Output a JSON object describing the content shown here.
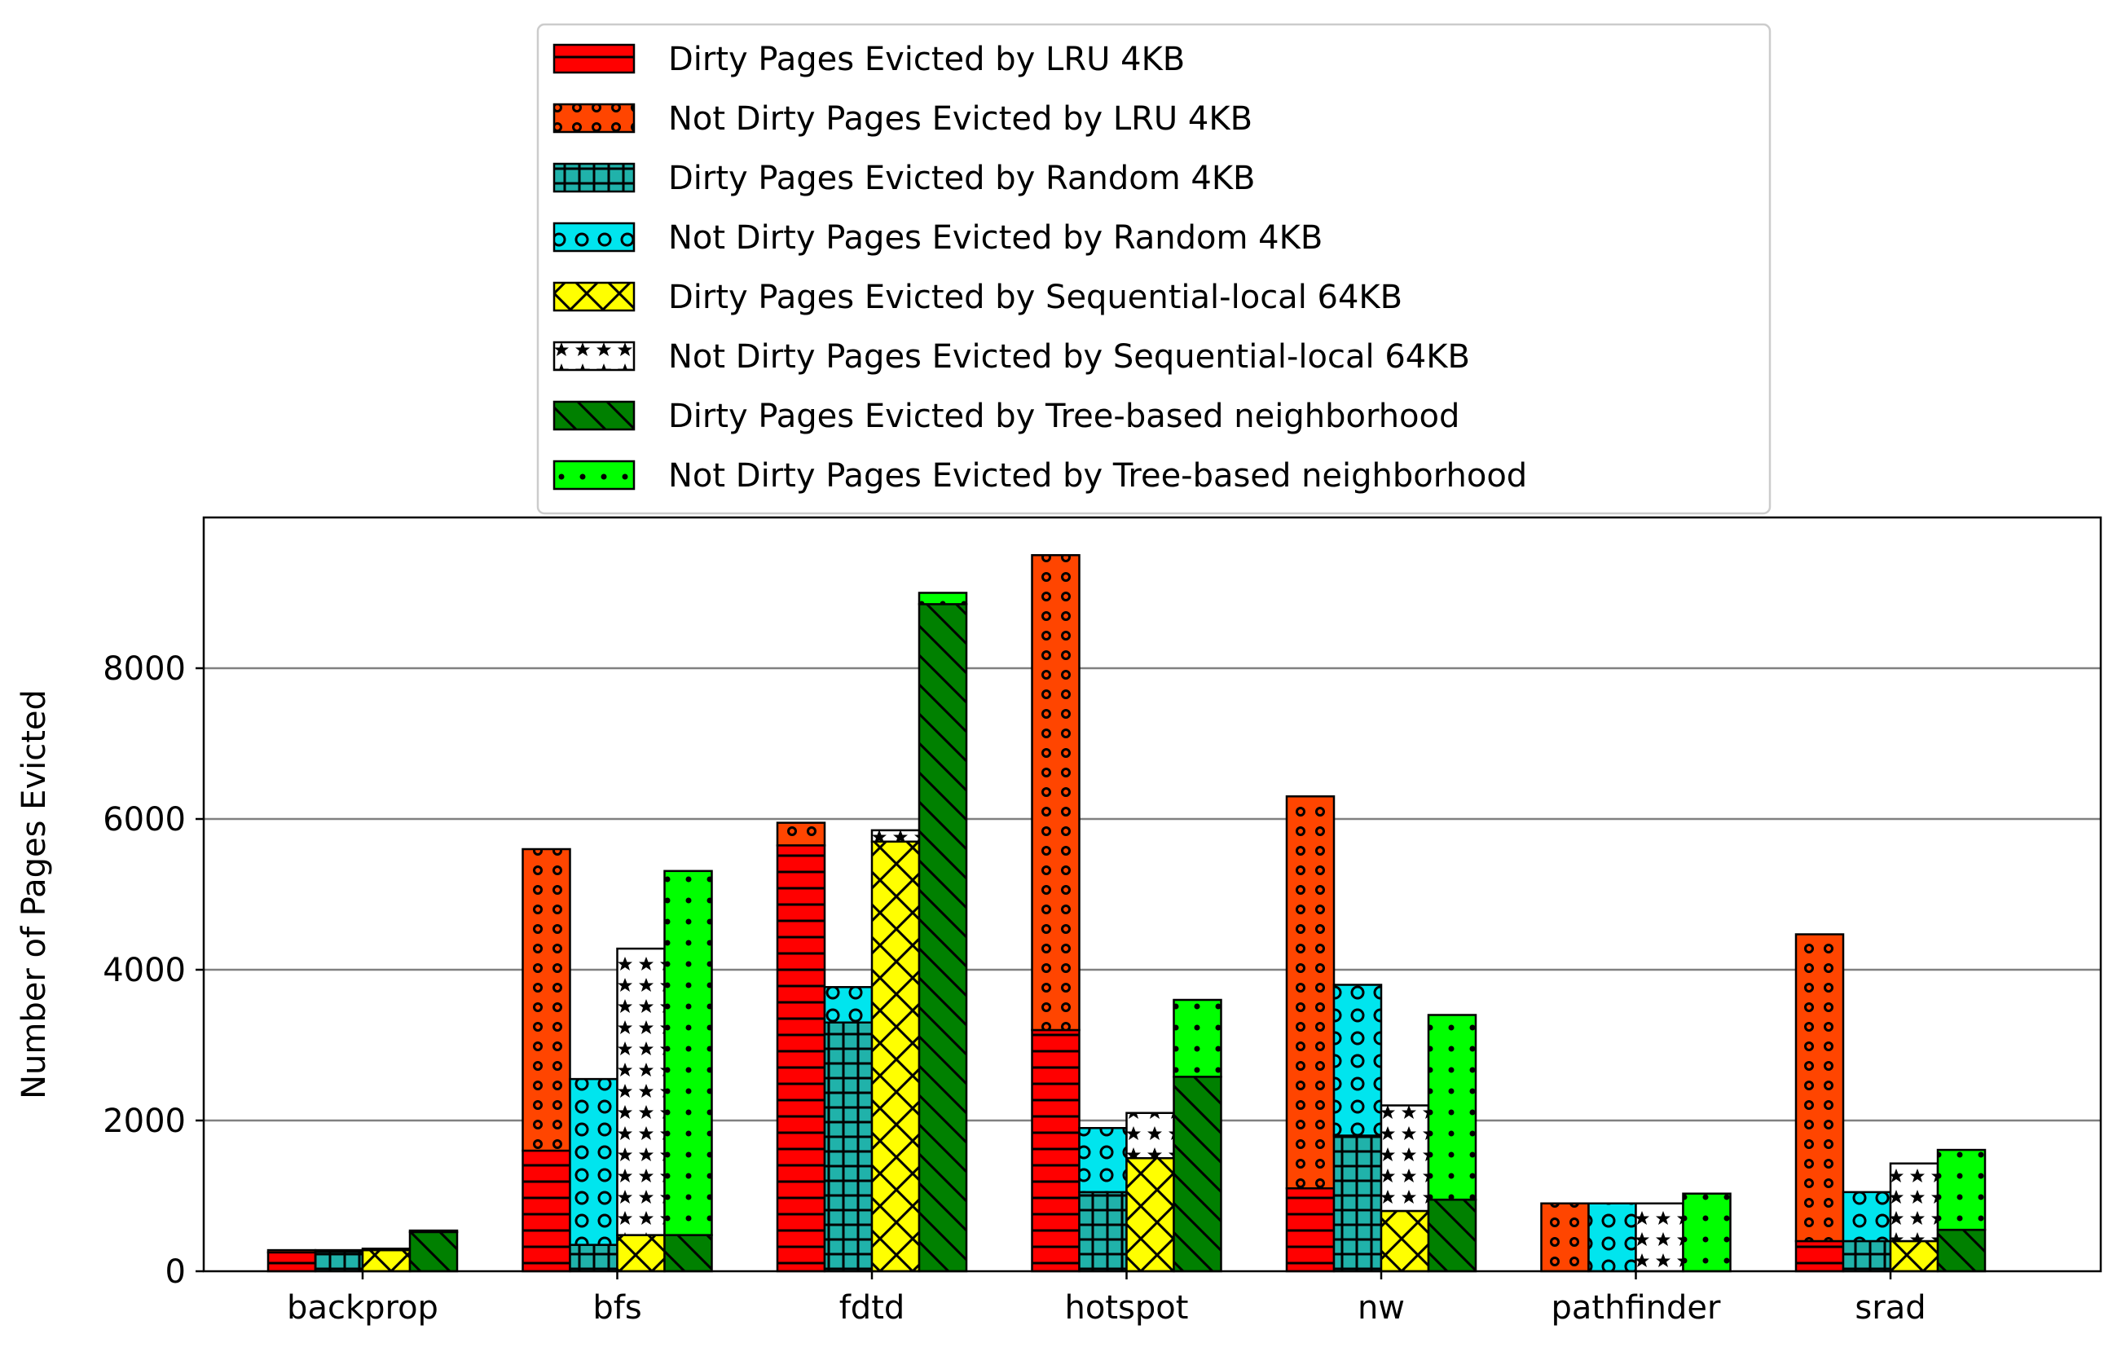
{
  "chart_data": {
    "type": "bar",
    "stacked": true,
    "grouped": true,
    "title": "",
    "xlabel": "",
    "ylabel": "Number of Pages Evicted",
    "ylim": [
      0,
      10000
    ],
    "yticks": [
      0,
      2000,
      4000,
      6000,
      8000
    ],
    "grid": "horizontal",
    "legend_placement": "top-center, above plot",
    "categories": [
      "backprop",
      "bfs",
      "fdtd",
      "hotspot",
      "nw",
      "pathfinder",
      "srad"
    ],
    "policies": [
      {
        "key": "lru",
        "dirty_label": "Dirty Pages Evicted by LRU 4KB",
        "clean_label": "Not Dirty Pages Evicted by LRU 4KB",
        "dirty_color": "#ff0000",
        "clean_color": "#ff4500",
        "dirty_pattern": "hlines",
        "clean_pattern": "circles-small",
        "dirty": [
          250,
          1600,
          5650,
          3200,
          1100,
          0,
          400
        ],
        "clean": [
          30,
          4000,
          300,
          6300,
          5200,
          900,
          4070
        ]
      },
      {
        "key": "random",
        "dirty_label": "Dirty Pages Evicted by Random 4KB",
        "clean_label": "Not Dirty Pages Evicted by Random 4KB",
        "dirty_color": "#20b2aa",
        "clean_color": "#00e5ee",
        "dirty_pattern": "grid",
        "clean_pattern": "rings",
        "dirty": [
          260,
          350,
          3300,
          1050,
          1800,
          0,
          400
        ],
        "clean": [
          20,
          2200,
          470,
          850,
          2000,
          900,
          650
        ]
      },
      {
        "key": "seq",
        "dirty_label": "Dirty Pages Evicted by Sequential-local 64KB",
        "clean_label": "Not Dirty Pages Evicted by Sequential-local 64KB",
        "dirty_color": "#ffff00",
        "clean_color": "#ffffff",
        "dirty_pattern": "crosshatch",
        "clean_pattern": "stars",
        "dirty": [
          280,
          480,
          5700,
          1500,
          800,
          0,
          400
        ],
        "clean": [
          20,
          3800,
          150,
          600,
          1400,
          900,
          1030
        ]
      },
      {
        "key": "tree",
        "dirty_label": "Dirty Pages Evicted by Tree-based neighborhood",
        "clean_label": "Not Dirty Pages Evicted by Tree-based neighborhood",
        "dirty_color": "#008000",
        "clean_color": "#00ff00",
        "dirty_pattern": "diag",
        "clean_pattern": "dots",
        "dirty": [
          520,
          480,
          8850,
          2580,
          950,
          0,
          550
        ],
        "clean": [
          20,
          4830,
          150,
          1020,
          2450,
          1030,
          1060
        ]
      }
    ]
  }
}
